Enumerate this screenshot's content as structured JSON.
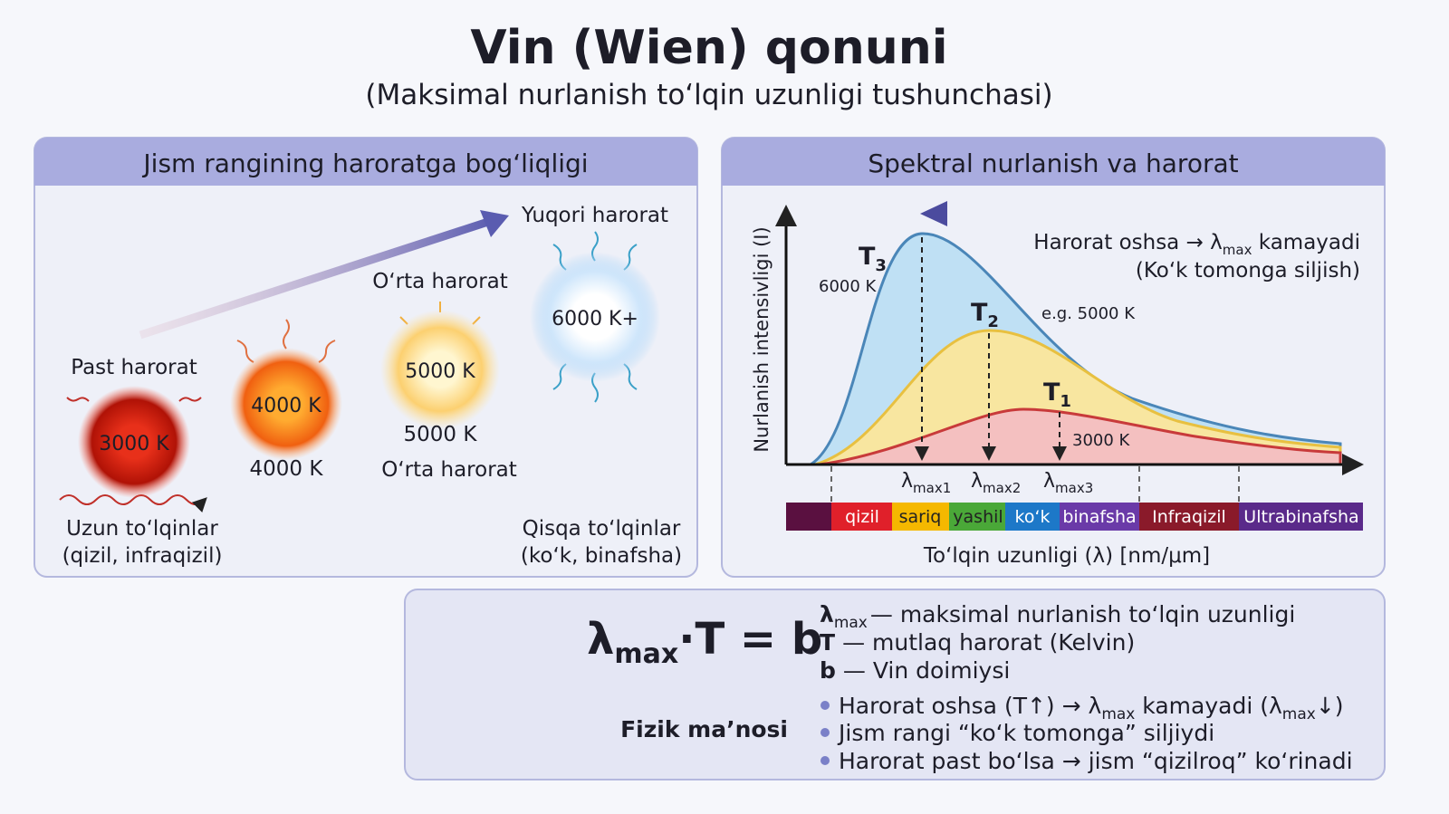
{
  "header": {
    "title": "Vin (Wien) qonuni",
    "subtitle": "(Maksimal nurlanish to‘lqin uzunligi tushunchasi)"
  },
  "left_panel": {
    "title": "Jism rangining haroratga bog‘liqligi",
    "stars": [
      "3000 K",
      "4000 K",
      "5000 K",
      "6000 K+"
    ],
    "captions": {
      "low": "Past harorat",
      "middle_top": "O‘rta harorat",
      "high": "Yuqori harorat",
      "k4000": "4000 K",
      "k5000": "5000 K",
      "middle_bottom": "O‘rta harorat"
    },
    "long_waves": [
      "Uzun to‘lqinlar",
      "(qizil, infraqizil)"
    ],
    "short_waves": [
      "Qisqa to‘lqinlar",
      "(ko‘k, binafsha)"
    ]
  },
  "right_panel": {
    "title": "Spektral nurlanish va harorat",
    "y_label": "Nurlanish intensivligi (I)",
    "x_label": "To‘lqin uzunligi (λ) [nm/μm]",
    "shift_note": {
      "line1": [
        "Harorat oshsa → λ",
        "max",
        " kamayadi"
      ],
      "line2": "(Ko‘k tomonga siljish)"
    },
    "curves": [
      {
        "name": [
          "T",
          "3"
        ],
        "temp": "6000 K"
      },
      {
        "name": [
          "T",
          "2"
        ],
        "temp": "e.g. 5000 K"
      },
      {
        "name": [
          "T",
          "1"
        ],
        "temp": "3000 K"
      }
    ],
    "peaks": [
      [
        "λ",
        "max1"
      ],
      [
        "λ",
        "max2"
      ],
      [
        "λ",
        "max3"
      ]
    ],
    "spectrum": [
      "qizil",
      "sariq",
      "yashil",
      "ko‘k",
      "binafsha",
      "Infraqizil",
      "Ultrabinafsha"
    ]
  },
  "formula_panel": {
    "formula": [
      "λ",
      "max",
      "·T = b"
    ],
    "definitions": [
      [
        "λ",
        "max",
        "— maksimal nurlanish to‘lqin uzunligi"
      ],
      [
        "T",
        "— mutlaq harorat (Kelvin)"
      ],
      [
        "b",
        "— Vin doimiysi"
      ]
    ],
    "meaning_label": "Fizik ma’nosi",
    "bullets": [
      [
        "Harorat oshsa (T↑) → λ",
        "max",
        " kamayadi (λ",
        "max",
        "↓)"
      ],
      [
        "Jism rangi “ko‘k tomonga” siljiydi"
      ],
      [
        "Harorat past bo‘lsa → jism “qizilroq” ko‘rinadi"
      ]
    ]
  }
}
